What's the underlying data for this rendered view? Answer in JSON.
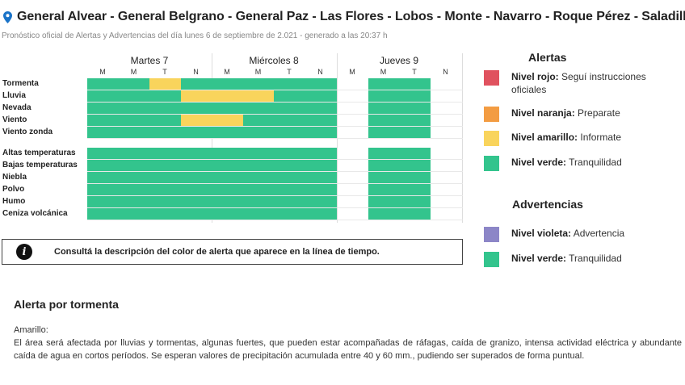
{
  "header": {
    "title": "General Alvear - General Belgrano - General Paz - Las Flores - Lobos - Monte - Navarro - Roque Pérez - Saladillo",
    "subtitle": "Pronóstico oficial de Alertas y Advertencias del día lunes 6 de septiembre de 2.021 - generado a las 20:37 h"
  },
  "timeline": {
    "days": [
      {
        "name": "Martes 7",
        "slots": [
          "M",
          "M",
          "T",
          "N"
        ]
      },
      {
        "name": "Miércoles 8",
        "slots": [
          "M",
          "M",
          "T",
          "N"
        ]
      },
      {
        "name": "Jueves 9",
        "slots": [
          "M",
          "M",
          "T",
          "N"
        ]
      }
    ],
    "rows": [
      {
        "label": "Tormenta",
        "levels": [
          "green",
          "green",
          "yellow",
          "green",
          "green",
          "green",
          "green",
          "green",
          "none",
          "green",
          "green",
          "none"
        ]
      },
      {
        "label": "Lluvia",
        "levels": [
          "green",
          "green",
          "green",
          "yellow",
          "yellow",
          "yellow",
          "green",
          "green",
          "none",
          "green",
          "green",
          "none"
        ]
      },
      {
        "label": "Nevada",
        "levels": [
          "green",
          "green",
          "green",
          "green",
          "green",
          "green",
          "green",
          "green",
          "none",
          "green",
          "green",
          "none"
        ]
      },
      {
        "label": "Viento",
        "levels": [
          "green",
          "green",
          "green",
          "yellow",
          "yellow",
          "green",
          "green",
          "green",
          "none",
          "green",
          "green",
          "none"
        ]
      },
      {
        "label": "Viento zonda",
        "levels": [
          "green",
          "green",
          "green",
          "green",
          "green",
          "green",
          "green",
          "green",
          "none",
          "green",
          "green",
          "none"
        ]
      },
      {
        "label": "Altas temperaturas",
        "levels": [
          "green",
          "green",
          "green",
          "green",
          "green",
          "green",
          "green",
          "green",
          "none",
          "green",
          "green",
          "none"
        ]
      },
      {
        "label": "Bajas temperaturas",
        "levels": [
          "green",
          "green",
          "green",
          "green",
          "green",
          "green",
          "green",
          "green",
          "none",
          "green",
          "green",
          "none"
        ]
      },
      {
        "label": "Niebla",
        "levels": [
          "green",
          "green",
          "green",
          "green",
          "green",
          "green",
          "green",
          "green",
          "none",
          "green",
          "green",
          "none"
        ]
      },
      {
        "label": "Polvo",
        "levels": [
          "green",
          "green",
          "green",
          "green",
          "green",
          "green",
          "green",
          "green",
          "none",
          "green",
          "green",
          "none"
        ]
      },
      {
        "label": "Humo",
        "levels": [
          "green",
          "green",
          "green",
          "green",
          "green",
          "green",
          "green",
          "green",
          "none",
          "green",
          "green",
          "none"
        ]
      },
      {
        "label": "Ceniza volcánica",
        "levels": [
          "green",
          "green",
          "green",
          "green",
          "green",
          "green",
          "green",
          "green",
          "none",
          "green",
          "green",
          "none"
        ]
      }
    ]
  },
  "colors": {
    "red": "#e0525f",
    "orange": "#f39c42",
    "yellow": "#f9d45c",
    "green": "#33c48d",
    "violet": "#8c86c7"
  },
  "info_box": {
    "icon": "info-icon",
    "icon_glyph": "i",
    "text": "Consultá la descripción del color de alerta que aparece en la línea de tiempo."
  },
  "legend": {
    "alerts_title": "Alertas",
    "alerts": [
      {
        "level": "Nivel rojo:",
        "desc": "Seguí instrucciones oficiales",
        "color": "#e0525f"
      },
      {
        "level": "Nivel naranja:",
        "desc": "Preparate",
        "color": "#f39c42"
      },
      {
        "level": "Nivel amarillo:",
        "desc": "Informate",
        "color": "#f9d45c"
      },
      {
        "level": "Nivel verde:",
        "desc": "Tranquilidad",
        "color": "#33c48d"
      }
    ],
    "warnings_title": "Advertencias",
    "warnings": [
      {
        "level": "Nivel violeta:",
        "desc": "Advertencia",
        "color": "#8c86c7"
      },
      {
        "level": "Nivel verde:",
        "desc": "Tranquilidad",
        "color": "#33c48d"
      }
    ]
  },
  "alert_detail": {
    "title": "Alerta por tormenta",
    "level": "Amarillo:",
    "description": "El área será afectada por lluvias y tormentas, algunas fuertes, que pueden estar acompañadas de ráfagas, caída de granizo, intensa actividad eléctrica y abundante caída de agua en cortos períodos. Se esperan valores de precipitación acumulada entre 40 y 60 mm., pudiendo ser superados de forma puntual."
  }
}
